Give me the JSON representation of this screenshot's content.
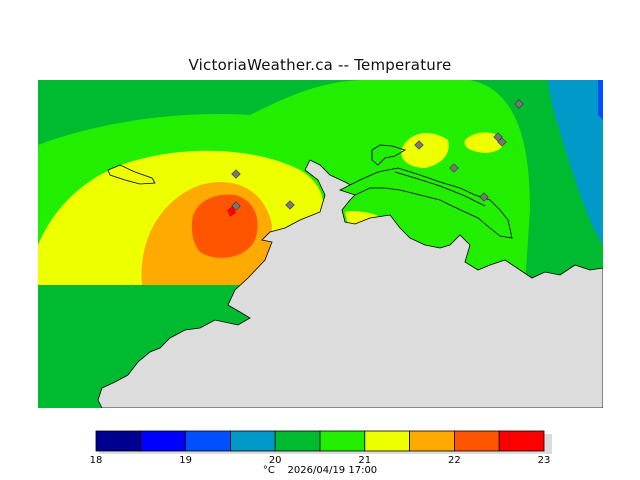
{
  "title": "VictoriaWeather.ca -- Temperature",
  "colors": {
    "land": "#dcdcdc",
    "coast": "#000000",
    "station": "#777777"
  },
  "scale": {
    "min": 18,
    "max": 23,
    "ticks": [
      "18",
      "19",
      "20",
      "21",
      "22",
      "23"
    ],
    "colors": [
      "#000090",
      "#0000ff",
      "#0050ff",
      "#0099c8",
      "#00bb30",
      "#22ee00",
      "#eeff00",
      "#ffaa00",
      "#ff5500",
      "#ff0000"
    ]
  },
  "footer": {
    "unit": "°C",
    "timestamp": "2026/04/19 17:00"
  }
}
